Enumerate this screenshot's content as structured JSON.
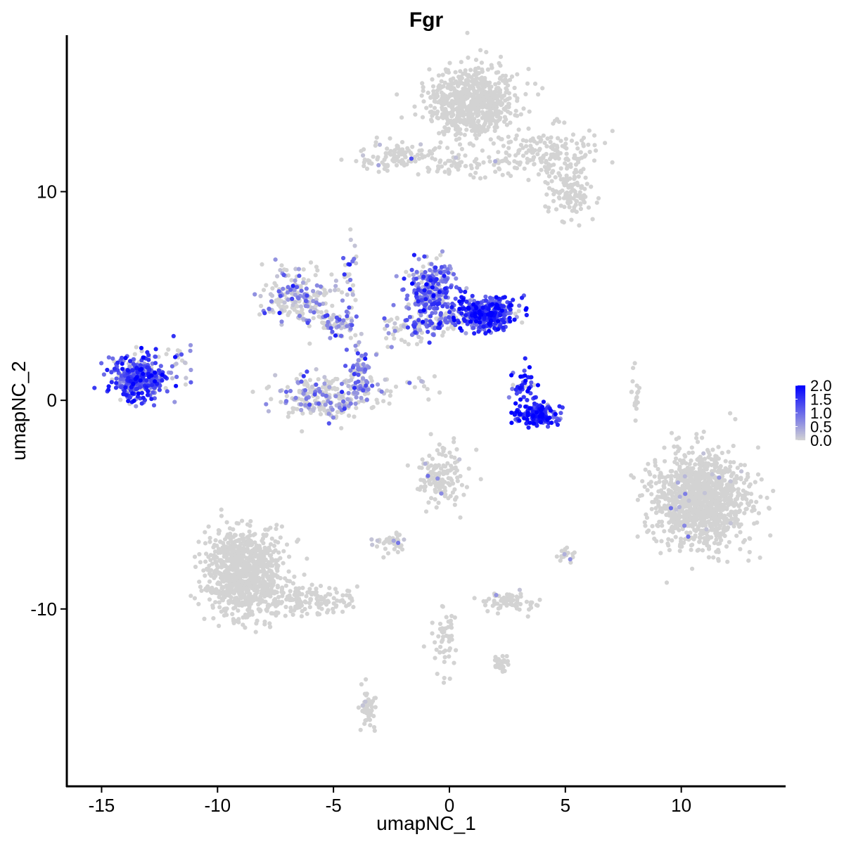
{
  "chart_data": {
    "type": "scatter",
    "title": "Fgr",
    "xlabel": "umapNC_1",
    "ylabel": "umapNC_2",
    "xlim": [
      -16.5,
      14.5
    ],
    "ylim": [
      -18.5,
      17.5
    ],
    "x_ticks": [
      -15,
      -10,
      -5,
      0,
      5,
      10
    ],
    "y_ticks": [
      -10,
      0,
      10
    ],
    "x_tick_labels": [
      "-15",
      "-10",
      "-5",
      "0",
      "5",
      "10"
    ],
    "y_tick_labels": [
      "-10",
      "0",
      "10"
    ],
    "grid": false,
    "legend": {
      "placement": "right",
      "scale_labels": [
        "2.0",
        "1.5",
        "1.0",
        "0.5",
        "0.0"
      ],
      "scale_values": [
        2.0,
        1.5,
        1.0,
        0.5,
        0.0
      ],
      "color_low": "#d3d3d3",
      "color_high": "#0000ff"
    },
    "point_color_low": "#d3d3d3",
    "point_color_high": "#0000ff",
    "clusters": [
      {
        "cx": 1.0,
        "cy": 14.3,
        "sx": 1.1,
        "sy": 1.0,
        "n": 700,
        "expr_mean": 0.0,
        "expr_frac": 0.0
      },
      {
        "cx": 4.3,
        "cy": 11.8,
        "sx": 1.1,
        "sy": 0.7,
        "n": 160,
        "expr_mean": 0.0,
        "expr_frac": 0.0
      },
      {
        "cx": 5.3,
        "cy": 10.0,
        "sx": 0.6,
        "sy": 0.7,
        "n": 120,
        "expr_mean": 0.0,
        "expr_frac": 0.02
      },
      {
        "cx": -2.4,
        "cy": 11.7,
        "sx": 0.9,
        "sy": 0.4,
        "n": 90,
        "expr_mean": 0.2,
        "expr_frac": 0.1
      },
      {
        "cx": 0.8,
        "cy": 11.3,
        "sx": 1.6,
        "sy": 0.4,
        "n": 80,
        "expr_mean": 0.1,
        "expr_frac": 0.05
      },
      {
        "cx": -13.4,
        "cy": 1.1,
        "sx": 0.7,
        "sy": 0.6,
        "n": 380,
        "expr_mean": 1.2,
        "expr_frac": 0.85
      },
      {
        "cx": -11.7,
        "cy": 2.0,
        "sx": 0.3,
        "sy": 0.6,
        "n": 25,
        "expr_mean": 0.6,
        "expr_frac": 0.4
      },
      {
        "cx": -6.5,
        "cy": 5.0,
        "sx": 0.9,
        "sy": 0.8,
        "n": 200,
        "expr_mean": 0.5,
        "expr_frac": 0.4
      },
      {
        "cx": -4.8,
        "cy": 3.7,
        "sx": 0.5,
        "sy": 0.4,
        "n": 70,
        "expr_mean": 0.7,
        "expr_frac": 0.5
      },
      {
        "cx": -5.4,
        "cy": 0.2,
        "sx": 1.3,
        "sy": 0.6,
        "n": 260,
        "expr_mean": 0.6,
        "expr_frac": 0.4
      },
      {
        "cx": -3.9,
        "cy": 1.3,
        "sx": 0.3,
        "sy": 0.8,
        "n": 70,
        "expr_mean": 0.8,
        "expr_frac": 0.6
      },
      {
        "cx": -4.3,
        "cy": 6.2,
        "sx": 0.2,
        "sy": 1.2,
        "n": 30,
        "expr_mean": 0.7,
        "expr_frac": 0.5
      },
      {
        "cx": -0.8,
        "cy": 5.3,
        "sx": 0.6,
        "sy": 0.8,
        "n": 240,
        "expr_mean": 1.0,
        "expr_frac": 0.8
      },
      {
        "cx": 1.6,
        "cy": 4.2,
        "sx": 0.8,
        "sy": 0.5,
        "n": 330,
        "expr_mean": 1.4,
        "expr_frac": 0.9
      },
      {
        "cx": -0.2,
        "cy": 3.8,
        "sx": 1.2,
        "sy": 0.4,
        "n": 120,
        "expr_mean": 1.0,
        "expr_frac": 0.7
      },
      {
        "cx": -1.9,
        "cy": 3.3,
        "sx": 0.6,
        "sy": 0.6,
        "n": 40,
        "expr_mean": 0.6,
        "expr_frac": 0.5
      },
      {
        "cx": 3.8,
        "cy": -0.7,
        "sx": 0.6,
        "sy": 0.3,
        "n": 180,
        "expr_mean": 1.5,
        "expr_frac": 0.9
      },
      {
        "cx": 3.2,
        "cy": 0.6,
        "sx": 0.3,
        "sy": 0.5,
        "n": 50,
        "expr_mean": 1.4,
        "expr_frac": 0.85
      },
      {
        "cx": -1.5,
        "cy": 0.8,
        "sx": 0.7,
        "sy": 0.4,
        "n": 15,
        "expr_mean": 0.4,
        "expr_frac": 0.3
      },
      {
        "cx": 8.1,
        "cy": 0.3,
        "sx": 0.15,
        "sy": 0.6,
        "n": 18,
        "expr_mean": 0.0,
        "expr_frac": 0.0
      },
      {
        "cx": 10.8,
        "cy": -4.8,
        "sx": 1.2,
        "sy": 1.3,
        "n": 1200,
        "expr_mean": 0.2,
        "expr_frac": 0.02
      },
      {
        "cx": -0.5,
        "cy": -3.8,
        "sx": 0.6,
        "sy": 0.8,
        "n": 150,
        "expr_mean": 0.3,
        "expr_frac": 0.03
      },
      {
        "cx": -8.8,
        "cy": -8.3,
        "sx": 1.0,
        "sy": 1.2,
        "n": 900,
        "expr_mean": 0.0,
        "expr_frac": 0.003
      },
      {
        "cx": -6.0,
        "cy": -9.6,
        "sx": 1.2,
        "sy": 0.4,
        "n": 140,
        "expr_mean": 0.0,
        "expr_frac": 0.0
      },
      {
        "cx": -2.5,
        "cy": -6.9,
        "sx": 0.4,
        "sy": 0.3,
        "n": 40,
        "expr_mean": 0.5,
        "expr_frac": 0.05
      },
      {
        "cx": 2.5,
        "cy": -9.6,
        "sx": 0.7,
        "sy": 0.3,
        "n": 70,
        "expr_mean": 0.5,
        "expr_frac": 0.05
      },
      {
        "cx": -0.2,
        "cy": -11.5,
        "sx": 0.3,
        "sy": 1.0,
        "n": 50,
        "expr_mean": 0.0,
        "expr_frac": 0.0
      },
      {
        "cx": 2.2,
        "cy": -12.7,
        "sx": 0.2,
        "sy": 0.2,
        "n": 30,
        "expr_mean": 0.0,
        "expr_frac": 0.0
      },
      {
        "cx": -3.5,
        "cy": -14.8,
        "sx": 0.2,
        "sy": 0.6,
        "n": 50,
        "expr_mean": 0.3,
        "expr_frac": 0.03
      },
      {
        "cx": 5.0,
        "cy": -7.4,
        "sx": 0.2,
        "sy": 0.2,
        "n": 18,
        "expr_mean": 0.5,
        "expr_frac": 0.1
      }
    ]
  }
}
